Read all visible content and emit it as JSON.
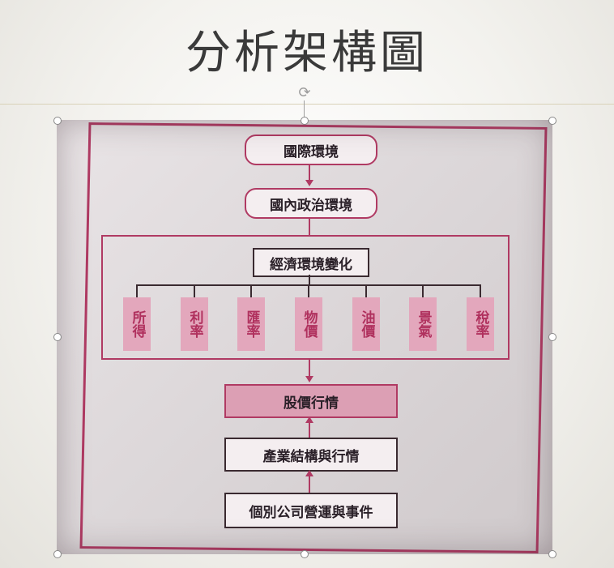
{
  "slide": {
    "title": "分析架構圖"
  },
  "diagram": {
    "top_nodes": [
      "國際環境",
      "國內政治環境"
    ],
    "economy_node": "經濟環境變化",
    "factors": [
      "所得",
      "利率",
      "匯率",
      "物價",
      "油價",
      "景氣",
      "稅率"
    ],
    "stock_node": "股價行情",
    "industry_node": "產業結構與行情",
    "company_node": "個別公司營運與事件"
  },
  "icons": {
    "rotate": "rotate-icon"
  },
  "colors": {
    "accent": "#b03a63",
    "factor_fill": "#e3a7bc",
    "stock_fill": "#dc9fb4"
  }
}
